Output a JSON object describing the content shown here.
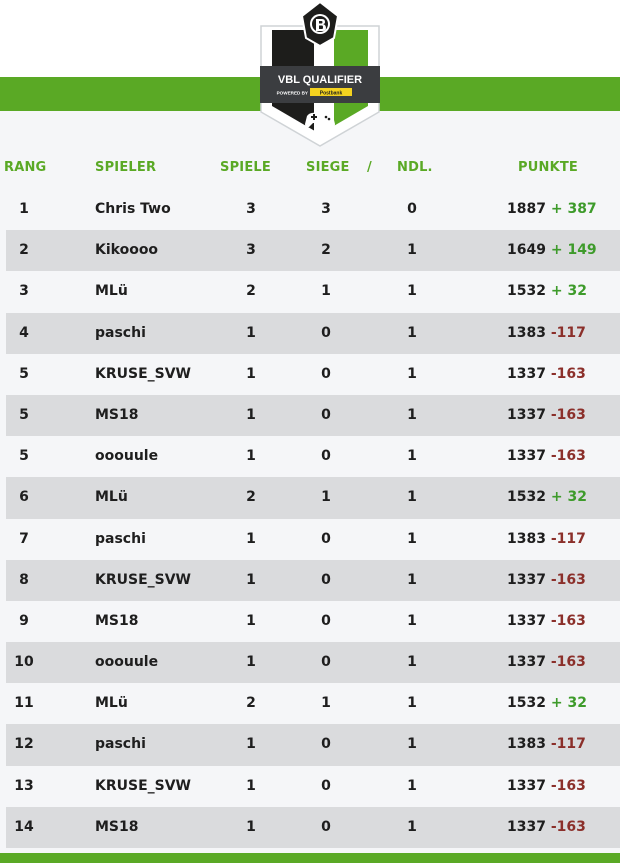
{
  "logo": {
    "title": "VBL QUALIFIER",
    "powered": "POWERED BY",
    "sponsor": "Postbank"
  },
  "colors": {
    "accent": "#5aa925",
    "positive": "#3e9b2b",
    "negative": "#8b2f2a",
    "row_alt": "#dadbdd"
  },
  "header": {
    "rang": "RANG",
    "spieler": "SPIELER",
    "spiele": "SPIELE",
    "siege": "SIEGE",
    "slash": "/",
    "ndl": "NDL.",
    "punkte": "PUNKTE"
  },
  "rows": [
    {
      "rang": "1",
      "spieler": "Chris Two",
      "spiele": "3",
      "siege": "3",
      "ndl": "0",
      "punkte": "1887",
      "delta": "+ 387",
      "delta_sign": "pos"
    },
    {
      "rang": "2",
      "spieler": "Kikoooo",
      "spiele": "3",
      "siege": "2",
      "ndl": "1",
      "punkte": "1649",
      "delta": "+ 149",
      "delta_sign": "pos"
    },
    {
      "rang": "3",
      "spieler": "MLü",
      "spiele": "2",
      "siege": "1",
      "ndl": "1",
      "punkte": "1532",
      "delta": "+ 32",
      "delta_sign": "pos"
    },
    {
      "rang": "4",
      "spieler": "paschi",
      "spiele": "1",
      "siege": "0",
      "ndl": "1",
      "punkte": "1383",
      "delta": "-117",
      "delta_sign": "neg"
    },
    {
      "rang": "5",
      "spieler": "KRUSE_SVW",
      "spiele": "1",
      "siege": "0",
      "ndl": "1",
      "punkte": "1337",
      "delta": "-163",
      "delta_sign": "neg"
    },
    {
      "rang": "5",
      "spieler": "MS18",
      "spiele": "1",
      "siege": "0",
      "ndl": "1",
      "punkte": "1337",
      "delta": "-163",
      "delta_sign": "neg"
    },
    {
      "rang": "5",
      "spieler": "ooouule",
      "spiele": "1",
      "siege": "0",
      "ndl": "1",
      "punkte": "1337",
      "delta": "-163",
      "delta_sign": "neg"
    },
    {
      "rang": "6",
      "spieler": "MLü",
      "spiele": "2",
      "siege": "1",
      "ndl": "1",
      "punkte": "1532",
      "delta": "+ 32",
      "delta_sign": "pos"
    },
    {
      "rang": "7",
      "spieler": "paschi",
      "spiele": "1",
      "siege": "0",
      "ndl": "1",
      "punkte": "1383",
      "delta": "-117",
      "delta_sign": "neg"
    },
    {
      "rang": "8",
      "spieler": "KRUSE_SVW",
      "spiele": "1",
      "siege": "0",
      "ndl": "1",
      "punkte": "1337",
      "delta": "-163",
      "delta_sign": "neg"
    },
    {
      "rang": "9",
      "spieler": "MS18",
      "spiele": "1",
      "siege": "0",
      "ndl": "1",
      "punkte": "1337",
      "delta": "-163",
      "delta_sign": "neg"
    },
    {
      "rang": "10",
      "spieler": "ooouule",
      "spiele": "1",
      "siege": "0",
      "ndl": "1",
      "punkte": "1337",
      "delta": "-163",
      "delta_sign": "neg"
    },
    {
      "rang": "11",
      "spieler": "MLü",
      "spiele": "2",
      "siege": "1",
      "ndl": "1",
      "punkte": "1532",
      "delta": "+ 32",
      "delta_sign": "pos"
    },
    {
      "rang": "12",
      "spieler": "paschi",
      "spiele": "1",
      "siege": "0",
      "ndl": "1",
      "punkte": "1383",
      "delta": "-117",
      "delta_sign": "neg"
    },
    {
      "rang": "13",
      "spieler": "KRUSE_SVW",
      "spiele": "1",
      "siege": "0",
      "ndl": "1",
      "punkte": "1337",
      "delta": "-163",
      "delta_sign": "neg"
    },
    {
      "rang": "14",
      "spieler": "MS18",
      "spiele": "1",
      "siege": "0",
      "ndl": "1",
      "punkte": "1337",
      "delta": "-163",
      "delta_sign": "neg"
    }
  ]
}
